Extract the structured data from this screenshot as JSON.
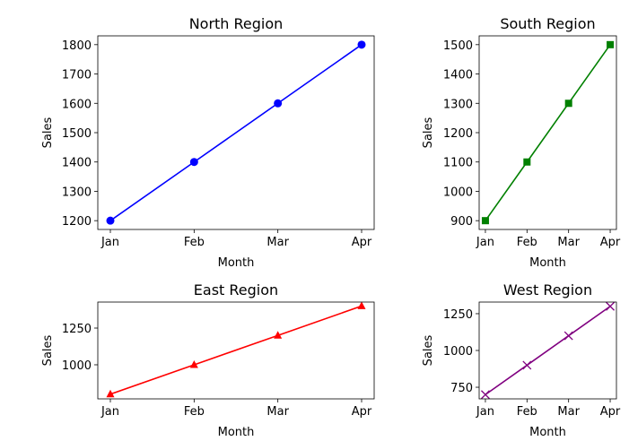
{
  "chart_data": [
    {
      "type": "line",
      "title": "North Region",
      "xlabel": "Month",
      "ylabel": "Sales",
      "categories": [
        "Jan",
        "Feb",
        "Mar",
        "Apr"
      ],
      "values": [
        1200,
        1400,
        1600,
        1800
      ],
      "yticks": [
        1200,
        1300,
        1400,
        1500,
        1600,
        1700,
        1800
      ],
      "ylim": [
        1170,
        1830
      ],
      "color": "#0000ff",
      "marker": "circle"
    },
    {
      "type": "line",
      "title": "South Region",
      "xlabel": "Month",
      "ylabel": "Sales",
      "categories": [
        "Jan",
        "Feb",
        "Mar",
        "Apr"
      ],
      "values": [
        900,
        1100,
        1300,
        1500
      ],
      "yticks": [
        900,
        1000,
        1100,
        1200,
        1300,
        1400,
        1500
      ],
      "ylim": [
        870,
        1530
      ],
      "color": "#008000",
      "marker": "square"
    },
    {
      "type": "line",
      "title": "East Region",
      "xlabel": "Month",
      "ylabel": "Sales",
      "categories": [
        "Jan",
        "Feb",
        "Mar",
        "Apr"
      ],
      "values": [
        800,
        1000,
        1200,
        1400
      ],
      "yticks": [
        1000,
        1250
      ],
      "ylim": [
        768,
        1427
      ],
      "color": "#ff0000",
      "marker": "triangle"
    },
    {
      "type": "line",
      "title": "West Region",
      "xlabel": "Month",
      "ylabel": "Sales",
      "categories": [
        "Jan",
        "Feb",
        "Mar",
        "Apr"
      ],
      "values": [
        700,
        900,
        1100,
        1300
      ],
      "yticks": [
        750,
        1000,
        1250
      ],
      "ylim": [
        671,
        1329
      ],
      "color": "#800080",
      "marker": "x"
    }
  ]
}
